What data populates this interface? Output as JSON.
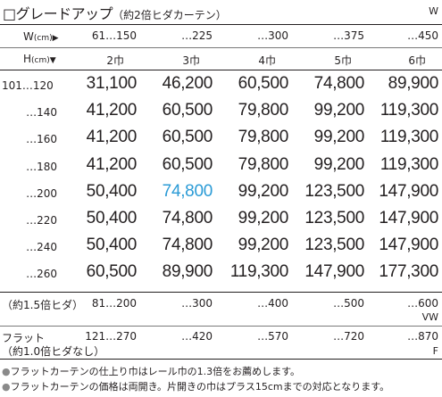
{
  "title": {
    "main": "□グレードアップ",
    "sub": "（約2倍ヒダカーテン）"
  },
  "top_unit": "W",
  "width_header": {
    "label": "W",
    "unit": "(cm)",
    "arrow": "▶",
    "values": [
      "61…150",
      "…225",
      "…300",
      "…375",
      "…450"
    ]
  },
  "height_header": {
    "label": "H",
    "unit": "(cm)",
    "arrow": "▼",
    "panels": [
      "2巾",
      "3巾",
      "4巾",
      "5巾",
      "6巾"
    ]
  },
  "rows": [
    {
      "label": "101…120",
      "values": [
        "31,100",
        "46,200",
        "60,500",
        "74,800",
        "89,900"
      ]
    },
    {
      "label": "…140",
      "values": [
        "41,200",
        "60,500",
        "79,800",
        "99,200",
        "119,300"
      ]
    },
    {
      "label": "…160",
      "values": [
        "41,200",
        "60,500",
        "79,800",
        "99,200",
        "119,300"
      ]
    },
    {
      "label": "…180",
      "values": [
        "41,200",
        "60,500",
        "79,800",
        "99,200",
        "119,300"
      ]
    },
    {
      "label": "…200",
      "values": [
        "50,400",
        "74,800",
        "99,200",
        "123,500",
        "147,900"
      ]
    },
    {
      "label": "…220",
      "values": [
        "50,400",
        "74,800",
        "99,200",
        "123,500",
        "147,900"
      ]
    },
    {
      "label": "…240",
      "values": [
        "50,400",
        "74,800",
        "99,200",
        "123,500",
        "147,900"
      ]
    },
    {
      "label": "…260",
      "values": [
        "60,500",
        "89,900",
        "119,300",
        "147,900",
        "177,300"
      ]
    }
  ],
  "highlight_color": "#2b9bd6",
  "pleat15": {
    "label": "（約1.5倍ヒダ）",
    "values": [
      "81…200",
      "…300",
      "…400",
      "…500",
      "…600"
    ],
    "unit": "VW"
  },
  "flat": {
    "label1": "フラット",
    "label2": "（約1.0倍ヒダなし）",
    "values": [
      "121…270",
      "…420",
      "…570",
      "…720",
      "…870"
    ],
    "unit": "F"
  },
  "notes": [
    {
      "bullet": "●",
      "text": "フラットカーテンの仕上り巾はレール巾の1.3倍をお薦めします。"
    },
    {
      "bullet": "●",
      "text": "フラットカーテンの価格は両開き。片開きの巾はプラス15cmまでの対応となります。"
    }
  ]
}
